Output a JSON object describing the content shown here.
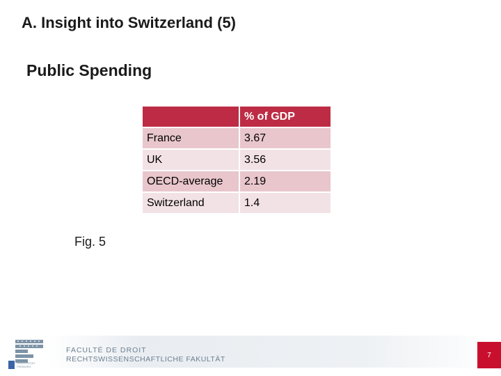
{
  "slide": {
    "title": "A. Insight into Switzerland (5)",
    "subtitle": "Public Spending",
    "figure_label": "Fig. 5",
    "page_number": "7"
  },
  "table": {
    "header": [
      "",
      "% of GDP"
    ],
    "rows": [
      [
        "France",
        "3.67"
      ],
      [
        "UK",
        "3.56"
      ],
      [
        "OECD-average",
        "2.19"
      ],
      [
        "Switzerland",
        "1.4"
      ]
    ]
  },
  "footer": {
    "faculty_line1": "FACULTÉ DE DROIT",
    "faculty_line2": "RECHTSWISSENSCHAFTLICHE FAKULTÄT",
    "logo_text_line1": "UNIVERSITÄT",
    "logo_text_line2": "FREIBURG"
  },
  "colors": {
    "header_bg": "#bd2c44",
    "row_odd": "#e8c6cc",
    "row_even": "#f3e2e5",
    "page_box": "#c8102e"
  }
}
